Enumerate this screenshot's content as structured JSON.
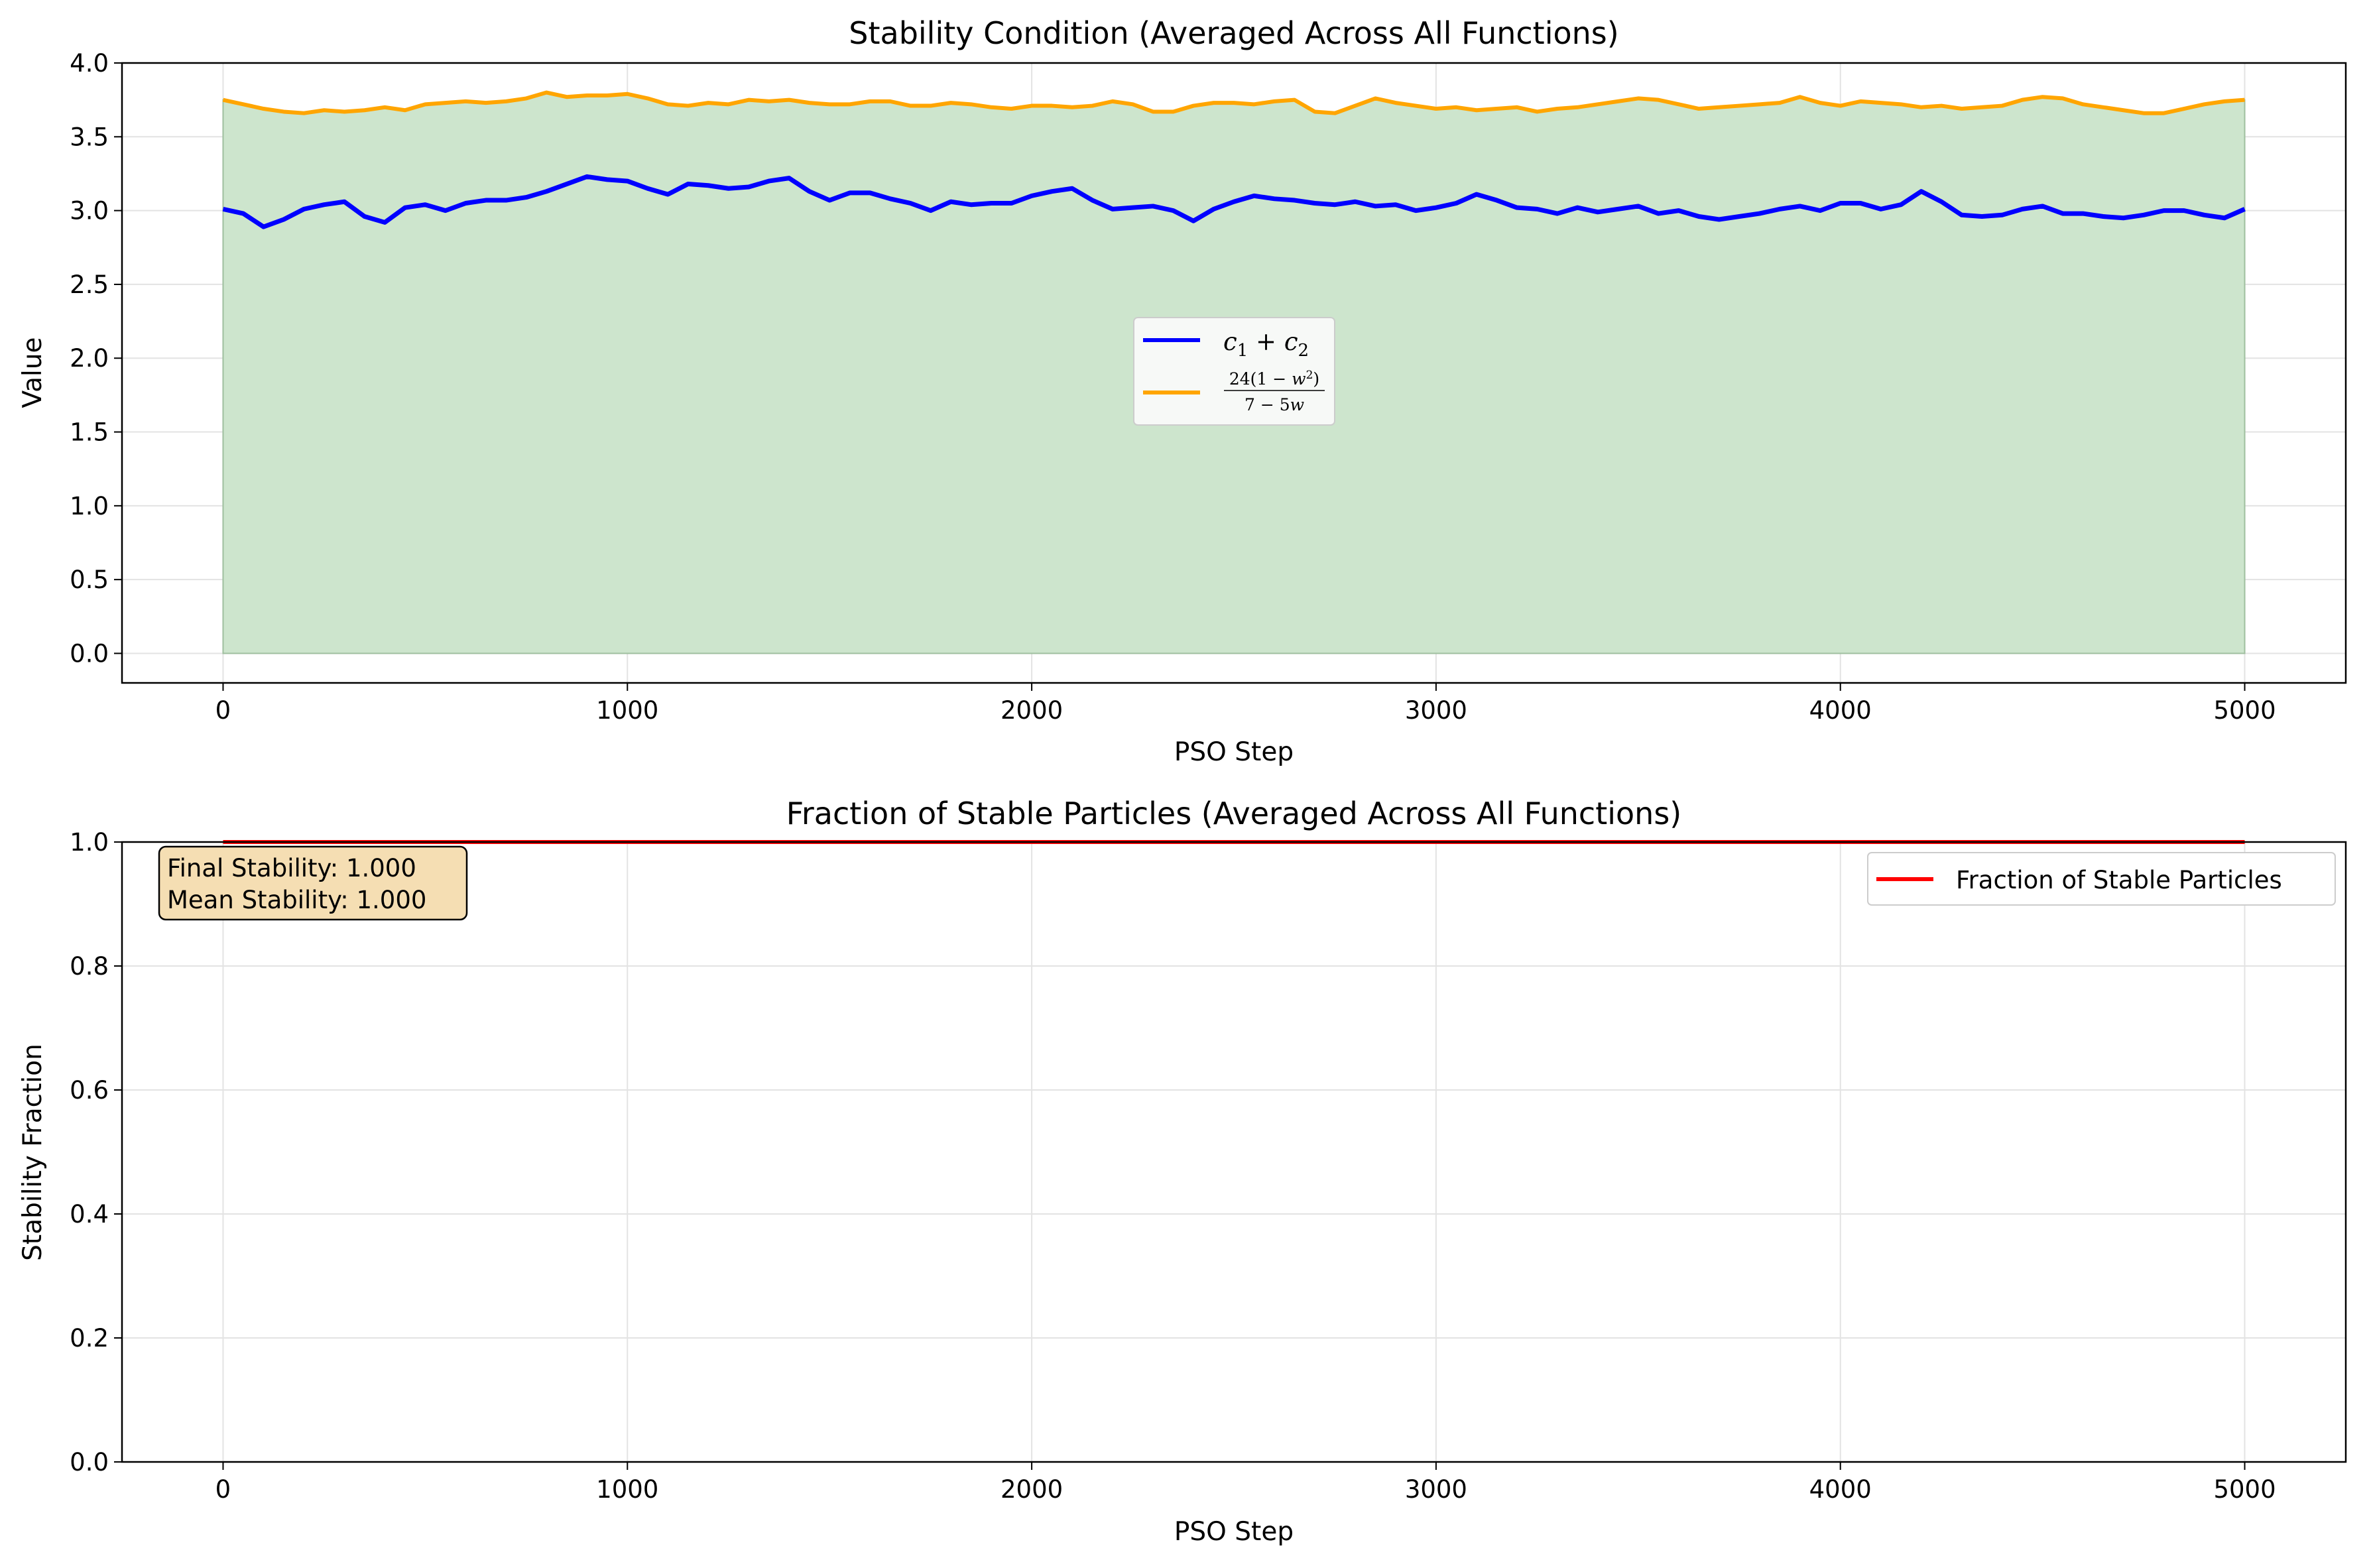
{
  "chart_data": [
    {
      "type": "line",
      "title": "Stability Condition (Averaged Across All Functions)",
      "xlabel": "PSO Step",
      "ylabel": "Value",
      "xlim": [
        -250,
        5250
      ],
      "ylim": [
        -0.2,
        4.0
      ],
      "xticks": [
        "0",
        "1000",
        "2000",
        "3000",
        "4000",
        "5000"
      ],
      "yticks": [
        "0.0",
        "0.5",
        "1.0",
        "1.5",
        "2.0",
        "2.5",
        "3.0",
        "3.5",
        "4.0"
      ],
      "grid": true,
      "legend_position": "center",
      "fill": {
        "between_series": "24(1 − w²) / (7 − 5w)",
        "and": 0,
        "color": "#cde5cd"
      },
      "x": [
        0,
        50,
        100,
        150,
        200,
        250,
        300,
        350,
        400,
        450,
        500,
        550,
        600,
        650,
        700,
        750,
        800,
        850,
        900,
        950,
        1000,
        1050,
        1100,
        1150,
        1200,
        1250,
        1300,
        1350,
        1400,
        1450,
        1500,
        1550,
        1600,
        1650,
        1700,
        1750,
        1800,
        1850,
        1900,
        1950,
        2000,
        2050,
        2100,
        2150,
        2200,
        2250,
        2300,
        2350,
        2400,
        2450,
        2500,
        2550,
        2600,
        2650,
        2700,
        2750,
        2800,
        2850,
        2900,
        2950,
        3000,
        3050,
        3100,
        3150,
        3200,
        3250,
        3300,
        3350,
        3400,
        3450,
        3500,
        3550,
        3600,
        3650,
        3700,
        3750,
        3800,
        3850,
        3900,
        3950,
        4000,
        4050,
        4100,
        4150,
        4200,
        4250,
        4300,
        4350,
        4400,
        4450,
        4500,
        4550,
        4600,
        4650,
        4700,
        4750,
        4800,
        4850,
        4900,
        4950,
        5000
      ],
      "series": [
        {
          "name": "c₁ + c₂",
          "color": "#0000ff",
          "values": [
            3.01,
            2.98,
            2.89,
            2.94,
            3.01,
            3.04,
            3.06,
            2.96,
            2.92,
            3.02,
            3.04,
            3.0,
            3.05,
            3.07,
            3.07,
            3.09,
            3.13,
            3.18,
            3.23,
            3.21,
            3.2,
            3.15,
            3.11,
            3.18,
            3.17,
            3.15,
            3.16,
            3.2,
            3.22,
            3.13,
            3.07,
            3.12,
            3.12,
            3.08,
            3.05,
            3.0,
            3.06,
            3.04,
            3.05,
            3.05,
            3.1,
            3.13,
            3.15,
            3.07,
            3.01,
            3.02,
            3.03,
            3.0,
            2.93,
            3.01,
            3.06,
            3.1,
            3.08,
            3.07,
            3.05,
            3.04,
            3.06,
            3.03,
            3.04,
            3.0,
            3.02,
            3.05,
            3.11,
            3.07,
            3.02,
            3.01,
            2.98,
            3.02,
            2.99,
            3.01,
            3.03,
            2.98,
            3.0,
            2.96,
            2.94,
            2.96,
            2.98,
            3.01,
            3.03,
            3.0,
            3.05,
            3.05,
            3.01,
            3.04,
            3.13,
            3.06,
            2.97,
            2.96,
            2.97,
            3.01,
            3.03,
            2.98,
            2.98,
            2.96,
            2.95,
            2.97,
            3.0,
            3.0,
            2.97,
            2.95,
            3.01
          ]
        },
        {
          "name": "24(1 − w²) / (7 − 5w)",
          "color": "#ffa500",
          "values": [
            3.75,
            3.72,
            3.69,
            3.67,
            3.66,
            3.68,
            3.67,
            3.68,
            3.7,
            3.68,
            3.72,
            3.73,
            3.74,
            3.73,
            3.74,
            3.76,
            3.8,
            3.77,
            3.78,
            3.78,
            3.79,
            3.76,
            3.72,
            3.71,
            3.73,
            3.72,
            3.75,
            3.74,
            3.75,
            3.73,
            3.72,
            3.72,
            3.74,
            3.74,
            3.71,
            3.71,
            3.73,
            3.72,
            3.7,
            3.69,
            3.71,
            3.71,
            3.7,
            3.71,
            3.74,
            3.72,
            3.67,
            3.67,
            3.71,
            3.73,
            3.73,
            3.72,
            3.74,
            3.75,
            3.67,
            3.66,
            3.71,
            3.76,
            3.73,
            3.71,
            3.69,
            3.7,
            3.68,
            3.69,
            3.7,
            3.67,
            3.69,
            3.7,
            3.72,
            3.74,
            3.76,
            3.75,
            3.72,
            3.69,
            3.7,
            3.71,
            3.72,
            3.73,
            3.77,
            3.73,
            3.71,
            3.74,
            3.73,
            3.72,
            3.7,
            3.71,
            3.69,
            3.7,
            3.71,
            3.75,
            3.77,
            3.76,
            3.72,
            3.7,
            3.68,
            3.66,
            3.66,
            3.69,
            3.72,
            3.74,
            3.75
          ]
        }
      ]
    },
    {
      "type": "line",
      "title": "Fraction of Stable Particles (Averaged Across All Functions)",
      "xlabel": "PSO Step",
      "ylabel": "Stability Fraction",
      "xlim": [
        -250,
        5250
      ],
      "ylim": [
        0.0,
        1.0
      ],
      "xticks": [
        "0",
        "1000",
        "2000",
        "3000",
        "4000",
        "5000"
      ],
      "yticks": [
        "0.0",
        "0.2",
        "0.4",
        "0.6",
        "0.8",
        "1.0"
      ],
      "grid": true,
      "legend_position": "top-right",
      "annotation": {
        "lines": [
          "Final Stability: 1.000",
          "Mean Stability: 1.000"
        ],
        "position": "top-left",
        "background": "#f5deb3"
      },
      "x": [
        0,
        5000
      ],
      "series": [
        {
          "name": "Fraction of Stable Particles",
          "color": "#ff0000",
          "values": [
            1.0,
            1.0
          ]
        }
      ]
    }
  ]
}
